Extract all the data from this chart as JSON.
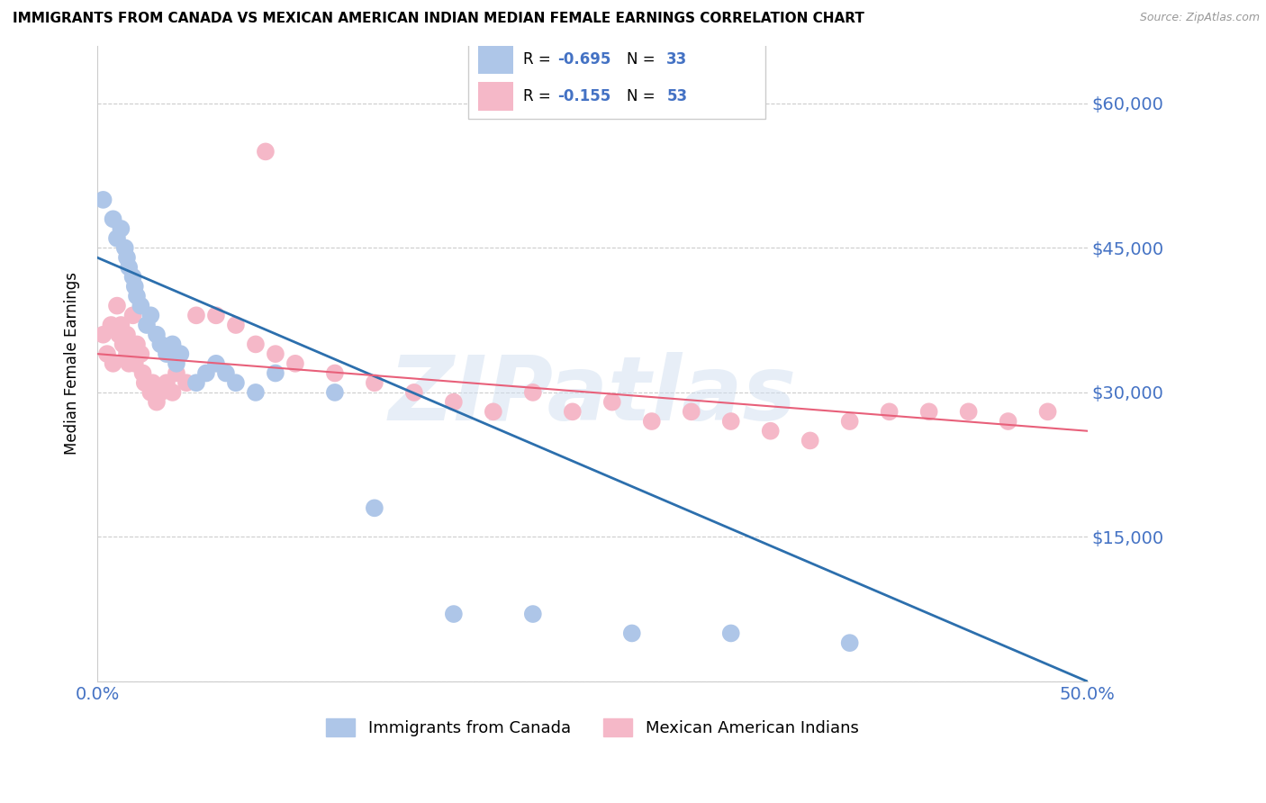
{
  "title": "IMMIGRANTS FROM CANADA VS MEXICAN AMERICAN INDIAN MEDIAN FEMALE EARNINGS CORRELATION CHART",
  "source": "Source: ZipAtlas.com",
  "ylabel": "Median Female Earnings",
  "xlim": [
    0.0,
    0.5
  ],
  "ylim": [
    0,
    66000
  ],
  "yticks": [
    0,
    15000,
    30000,
    45000,
    60000
  ],
  "ytick_labels": [
    "",
    "$15,000",
    "$30,000",
    "$45,000",
    "$60,000"
  ],
  "xticks": [
    0.0,
    0.1,
    0.2,
    0.3,
    0.4,
    0.5
  ],
  "xtick_labels": [
    "0.0%",
    "",
    "",
    "",
    "",
    "50.0%"
  ],
  "blue_color": "#aec6e8",
  "pink_color": "#f5b8c8",
  "blue_line_color": "#2c6fad",
  "pink_line_color": "#e8607a",
  "right_label_color": "#4472c4",
  "watermark": "ZIPatlas",
  "background_color": "#ffffff",
  "grid_color": "#cccccc",
  "blue_x": [
    0.003,
    0.008,
    0.01,
    0.012,
    0.014,
    0.015,
    0.016,
    0.018,
    0.019,
    0.02,
    0.022,
    0.025,
    0.027,
    0.03,
    0.032,
    0.035,
    0.038,
    0.04,
    0.042,
    0.05,
    0.055,
    0.06,
    0.065,
    0.07,
    0.08,
    0.09,
    0.12,
    0.14,
    0.18,
    0.22,
    0.27,
    0.32,
    0.38
  ],
  "blue_y": [
    50000,
    48000,
    46000,
    47000,
    45000,
    44000,
    43000,
    42000,
    41000,
    40000,
    39000,
    37000,
    38000,
    36000,
    35000,
    34000,
    35000,
    33000,
    34000,
    31000,
    32000,
    33000,
    32000,
    31000,
    30000,
    32000,
    30000,
    18000,
    7000,
    7000,
    5000,
    5000,
    4000
  ],
  "pink_x": [
    0.003,
    0.005,
    0.007,
    0.008,
    0.01,
    0.011,
    0.012,
    0.013,
    0.015,
    0.015,
    0.016,
    0.017,
    0.018,
    0.019,
    0.02,
    0.022,
    0.023,
    0.024,
    0.025,
    0.027,
    0.028,
    0.03,
    0.032,
    0.035,
    0.038,
    0.04,
    0.045,
    0.05,
    0.06,
    0.07,
    0.08,
    0.09,
    0.1,
    0.12,
    0.14,
    0.16,
    0.18,
    0.2,
    0.22,
    0.24,
    0.26,
    0.28,
    0.3,
    0.32,
    0.34,
    0.36,
    0.38,
    0.4,
    0.42,
    0.44,
    0.46,
    0.48,
    0.085
  ],
  "pink_y": [
    36000,
    34000,
    37000,
    33000,
    39000,
    36000,
    37000,
    35000,
    36000,
    34000,
    33000,
    35000,
    38000,
    33000,
    35000,
    34000,
    32000,
    31000,
    31000,
    30000,
    31000,
    29000,
    30000,
    31000,
    30000,
    32000,
    31000,
    38000,
    38000,
    37000,
    35000,
    34000,
    33000,
    32000,
    31000,
    30000,
    29000,
    28000,
    30000,
    28000,
    29000,
    27000,
    28000,
    27000,
    26000,
    25000,
    27000,
    28000,
    28000,
    28000,
    27000,
    28000,
    55000
  ]
}
